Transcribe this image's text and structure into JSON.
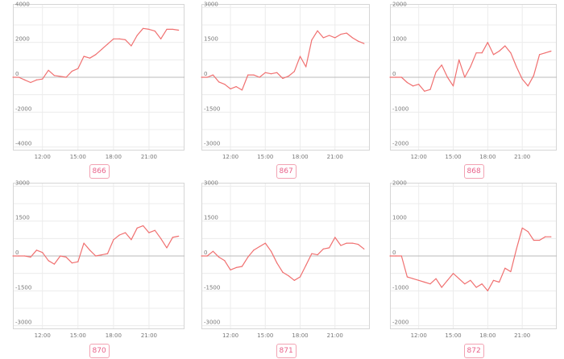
{
  "colors": {
    "line": "#f07070",
    "zero_line": "#bbbbbb",
    "grid": "#ececec",
    "frame": "#d6d6d6",
    "badge_border": "#f2a3b3",
    "badge_text": "#e8628a"
  },
  "chart_data": [
    {
      "type": "line",
      "label": "866",
      "ylim": [
        -4200,
        4200
      ],
      "y_ticks": [
        4000,
        2000,
        0,
        -2000,
        -4000
      ],
      "y_tick_labels": [
        "4000",
        "2000",
        "0",
        "-2000",
        "-4000"
      ],
      "xlim": [
        9.5,
        24
      ],
      "x_ticks": [
        12,
        15,
        18,
        21
      ],
      "x_tick_labels": [
        "12:00",
        "15:00",
        "18:00",
        "21:00"
      ],
      "grid": true,
      "series": [
        {
          "x": [
            9.5,
            10,
            10.5,
            11,
            11.5,
            12,
            12.5,
            13,
            13.5,
            14,
            14.5,
            15,
            15.5,
            16,
            16.5,
            17,
            17.5,
            18,
            18.5,
            19,
            19.5,
            20,
            20.5,
            21,
            21.5,
            22,
            22.5,
            23,
            23.5
          ],
          "values": [
            0,
            0,
            -150,
            -300,
            -150,
            -100,
            400,
            100,
            50,
            0,
            350,
            500,
            1200,
            1100,
            1300,
            1600,
            1900,
            2200,
            2200,
            2150,
            1800,
            2400,
            2800,
            2750,
            2650,
            2200,
            2750,
            2750,
            2700
          ]
        }
      ]
    },
    {
      "type": "line",
      "label": "867",
      "ylim": [
        -3150,
        3150
      ],
      "y_ticks": [
        3000,
        1500,
        0,
        -1500,
        -3000
      ],
      "y_tick_labels": [
        "3000",
        "1500",
        "0",
        "-1500",
        "-3000"
      ],
      "xlim": [
        9.5,
        24
      ],
      "x_ticks": [
        12,
        15,
        18,
        21
      ],
      "x_tick_labels": [
        "12:00",
        "15:00",
        "18:00",
        "21:00"
      ],
      "grid": true,
      "series": [
        {
          "x": [
            9.5,
            10,
            10.5,
            11,
            11.5,
            12,
            12.5,
            13,
            13.5,
            14,
            14.5,
            15,
            15.5,
            16,
            16.5,
            17,
            17.5,
            18,
            18.5,
            19,
            19.5,
            20,
            20.5,
            21,
            21.5,
            22,
            22.5,
            23,
            23.5
          ],
          "values": [
            0,
            0,
            100,
            -200,
            -300,
            -500,
            -400,
            -550,
            100,
            100,
            0,
            200,
            150,
            200,
            -50,
            50,
            250,
            900,
            450,
            1600,
            2000,
            1700,
            1800,
            1700,
            1850,
            1900,
            1700,
            1550,
            1450
          ]
        }
      ]
    },
    {
      "type": "line",
      "label": "868",
      "ylim": [
        -2100,
        2100
      ],
      "y_ticks": [
        2000,
        1000,
        0,
        -1000,
        -2000
      ],
      "y_tick_labels": [
        "2000",
        "1000",
        "0",
        "-1000",
        "-2000"
      ],
      "xlim": [
        9.5,
        24
      ],
      "x_ticks": [
        12,
        15,
        18,
        21
      ],
      "x_tick_labels": [
        "12:00",
        "15:00",
        "18:00",
        "21:00"
      ],
      "grid": true,
      "series": [
        {
          "x": [
            9.5,
            10,
            10.5,
            11,
            11.5,
            12,
            12.5,
            13,
            13.5,
            14,
            14.5,
            15,
            15.5,
            16,
            16.5,
            17,
            17.5,
            18,
            18.5,
            19,
            19.5,
            20,
            20.5,
            21,
            21.5,
            22,
            22.5,
            23,
            23.5
          ],
          "values": [
            0,
            0,
            0,
            -150,
            -250,
            -200,
            -400,
            -350,
            150,
            350,
            0,
            -250,
            500,
            0,
            300,
            700,
            700,
            1000,
            650,
            750,
            900,
            700,
            300,
            -50,
            -250,
            50,
            650,
            700,
            750
          ]
        }
      ]
    },
    {
      "type": "line",
      "label": "870",
      "ylim": [
        -3150,
        3150
      ],
      "y_ticks": [
        3000,
        1500,
        0,
        -1500,
        -3000
      ],
      "y_tick_labels": [
        "3000",
        "1500",
        "0",
        "-1500",
        "-3000"
      ],
      "xlim": [
        9.5,
        24
      ],
      "x_ticks": [
        12,
        15,
        18,
        21
      ],
      "x_tick_labels": [
        "12:00",
        "15:00",
        "18:00",
        "21:00"
      ],
      "grid": true,
      "series": [
        {
          "x": [
            9.5,
            10,
            10.5,
            11,
            11.5,
            12,
            12.5,
            13,
            13.5,
            14,
            14.5,
            15,
            15.5,
            16,
            16.5,
            17,
            17.5,
            18,
            18.5,
            19,
            19.5,
            20,
            20.5,
            21,
            21.5,
            22,
            22.5,
            23,
            23.5
          ],
          "values": [
            0,
            0,
            0,
            -50,
            250,
            150,
            -200,
            -350,
            0,
            -50,
            -300,
            -250,
            550,
            250,
            0,
            50,
            100,
            700,
            900,
            1000,
            700,
            1200,
            1300,
            1000,
            1100,
            750,
            350,
            800,
            850
          ]
        }
      ]
    },
    {
      "type": "line",
      "label": "871",
      "ylim": [
        -3150,
        3150
      ],
      "y_ticks": [
        3000,
        1500,
        0,
        -1500,
        -3000
      ],
      "y_tick_labels": [
        "3000",
        "1500",
        "0",
        "-1500",
        "-3000"
      ],
      "xlim": [
        9.5,
        24
      ],
      "x_ticks": [
        12,
        15,
        18,
        21
      ],
      "x_tick_labels": [
        "12:00",
        "15:00",
        "18:00",
        "21:00"
      ],
      "grid": true,
      "series": [
        {
          "x": [
            9.5,
            10,
            10.5,
            11,
            11.5,
            12,
            12.5,
            13,
            13.5,
            14,
            14.5,
            15,
            15.5,
            16,
            16.5,
            17,
            17.5,
            18,
            18.5,
            19,
            19.5,
            20,
            20.5,
            21,
            21.5,
            22,
            22.5,
            23,
            23.5
          ],
          "values": [
            0,
            0,
            200,
            -50,
            -200,
            -600,
            -500,
            -450,
            -50,
            250,
            400,
            550,
            200,
            -300,
            -700,
            -850,
            -1050,
            -900,
            -400,
            100,
            50,
            300,
            350,
            800,
            450,
            550,
            550,
            500,
            300
          ]
        }
      ]
    },
    {
      "type": "line",
      "label": "872",
      "ylim": [
        -2100,
        2100
      ],
      "y_ticks": [
        2000,
        1000,
        0,
        -1000,
        -2000
      ],
      "y_tick_labels": [
        "2000",
        "1000",
        "0",
        "-1000",
        "-2000"
      ],
      "xlim": [
        9.5,
        24
      ],
      "x_ticks": [
        12,
        15,
        18,
        21
      ],
      "x_tick_labels": [
        "12:00",
        "15:00",
        "18:00",
        "21:00"
      ],
      "grid": true,
      "series": [
        {
          "x": [
            9.5,
            10,
            10.5,
            11,
            11.5,
            12,
            12.5,
            13,
            13.5,
            14,
            14.5,
            15,
            15.5,
            16,
            16.5,
            17,
            17.5,
            18,
            18.5,
            19,
            19.5,
            20,
            20.5,
            21,
            21.5,
            22,
            22.5,
            23,
            23.5
          ],
          "values": [
            0,
            0,
            0,
            -600,
            -650,
            -700,
            -750,
            -800,
            -650,
            -900,
            -700,
            -500,
            -650,
            -800,
            -700,
            -900,
            -800,
            -1000,
            -700,
            -750,
            -350,
            -450,
            200,
            800,
            700,
            450,
            450,
            550,
            550
          ]
        }
      ]
    }
  ]
}
